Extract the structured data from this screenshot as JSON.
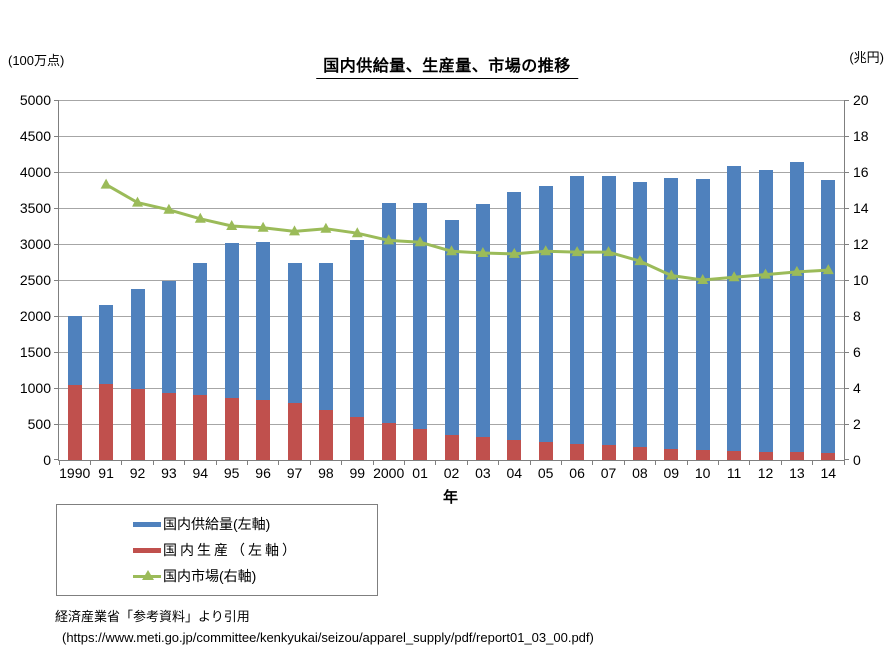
{
  "title": "国内供給量、生産量、市場の推移",
  "left_axis_unit": "(100万点)",
  "right_axis_unit": "(兆円)",
  "x_axis_title": "年",
  "legend": {
    "items": [
      {
        "label": "国内供給量(左軸)",
        "color": "#4F81BD",
        "type": "bar"
      },
      {
        "label": "国内生産（左軸）",
        "color": "#C0504D",
        "type": "bar"
      },
      {
        "label": "国内市場(右軸)",
        "color": "#9BBB59",
        "type": "line"
      }
    ]
  },
  "source": {
    "line1": "経済産業省「参考資料」より引用",
    "line2": "(https://www.meti.go.jp/committee/kenkyukai/seizou/apparel_supply/pdf/report01_03_00.pdf)"
  },
  "chart_data": {
    "type": "bar+line",
    "title": "国内供給量、生産量、市場の推移",
    "xlabel": "年",
    "categories": [
      "1990",
      "91",
      "92",
      "93",
      "94",
      "95",
      "96",
      "97",
      "98",
      "99",
      "2000",
      "01",
      "02",
      "03",
      "04",
      "05",
      "06",
      "07",
      "08",
      "09",
      "10",
      "11",
      "12",
      "13",
      "14"
    ],
    "series": [
      {
        "name": "国内供給量(左軸)",
        "type": "bar",
        "axis": "left",
        "color": "#4F81BD",
        "values": [
          2000,
          2150,
          2380,
          2490,
          2730,
          3010,
          3030,
          2740,
          2730,
          3060,
          3570,
          3570,
          3340,
          3550,
          3720,
          3810,
          3950,
          3940,
          3860,
          3920,
          3900,
          4090,
          4030,
          4140,
          3890
        ]
      },
      {
        "name": "国内生産（左軸）",
        "type": "bar",
        "axis": "left",
        "color": "#C0504D",
        "values": [
          1045,
          1050,
          980,
          935,
          900,
          865,
          835,
          790,
          700,
          600,
          520,
          425,
          350,
          315,
          280,
          250,
          228,
          210,
          178,
          155,
          140,
          127,
          117,
          105,
          95
        ]
      },
      {
        "name": "国内市場(右軸)",
        "type": "line",
        "axis": "right",
        "color": "#9BBB59",
        "values": [
          null,
          15.3,
          14.3,
          13.9,
          13.4,
          13.0,
          12.9,
          12.7,
          12.85,
          12.6,
          12.2,
          12.1,
          11.6,
          11.5,
          11.45,
          11.6,
          11.55,
          11.55,
          11.05,
          10.25,
          10.0,
          10.15,
          10.3,
          10.45,
          10.55
        ]
      }
    ],
    "left_axis": {
      "unit": "(100万点)",
      "min": 0,
      "max": 5000,
      "step": 500
    },
    "right_axis": {
      "unit": "(兆円)",
      "min": 0,
      "max": 20,
      "step": 2
    },
    "grid": true,
    "legend_position": "bottom-left"
  }
}
